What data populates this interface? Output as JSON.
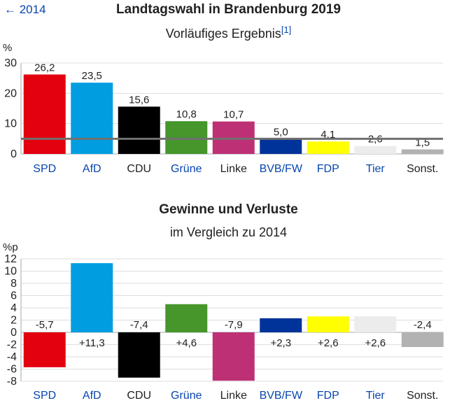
{
  "back_link": "← 2014",
  "chart_data": [
    {
      "type": "bar",
      "title": "Landtagswahl in Brandenburg 2019",
      "subtitle": "Vorläufiges Ergebnis",
      "footnote": "[1]",
      "ylabel": "%",
      "ylim": [
        0,
        30
      ],
      "yticks": [
        0,
        10,
        20,
        30
      ],
      "grid": true,
      "threshold": 5,
      "categories": [
        "SPD",
        "AfD",
        "CDU",
        "Grüne",
        "Linke",
        "BVB/FW",
        "FDP",
        "Tier",
        "Sonst."
      ],
      "category_links": [
        true,
        true,
        false,
        true,
        false,
        true,
        true,
        true,
        false
      ],
      "values": [
        26.2,
        23.5,
        15.6,
        10.8,
        10.7,
        5.0,
        4.1,
        2.6,
        1.5
      ],
      "value_labels": [
        "26,2",
        "23,5",
        "15,6",
        "10,8",
        "10,7",
        "5,0",
        "4,1",
        "2,6",
        "1,5"
      ],
      "colors": [
        "#e3000f",
        "#009ee0",
        "#000000",
        "#46962b",
        "#be3075",
        "#003399",
        "#ffff00",
        "#ececec",
        "#b2b2b2"
      ]
    },
    {
      "type": "bar",
      "title": "Gewinne und Verluste",
      "subtitle": "im Vergleich zu 2014",
      "ylabel": "%p",
      "ylim": [
        -8,
        12
      ],
      "yticks": [
        -8,
        -6,
        -4,
        -2,
        0,
        2,
        4,
        6,
        8,
        10,
        12
      ],
      "grid": true,
      "categories": [
        "SPD",
        "AfD",
        "CDU",
        "Grüne",
        "Linke",
        "BVB/FW",
        "FDP",
        "Tier",
        "Sonst."
      ],
      "category_links": [
        true,
        true,
        false,
        true,
        false,
        true,
        true,
        true,
        false
      ],
      "values": [
        -5.7,
        11.3,
        -7.4,
        4.6,
        -7.9,
        2.3,
        2.6,
        2.6,
        -2.4
      ],
      "value_labels": [
        "-5,7",
        "+11,3",
        "-7,4",
        "+4,6",
        "-7,9",
        "+2,3",
        "+2,6",
        "+2,6",
        "-2,4"
      ],
      "colors": [
        "#e3000f",
        "#009ee0",
        "#000000",
        "#46962b",
        "#be3075",
        "#003399",
        "#ffff00",
        "#ececec",
        "#b2b2b2"
      ]
    }
  ]
}
